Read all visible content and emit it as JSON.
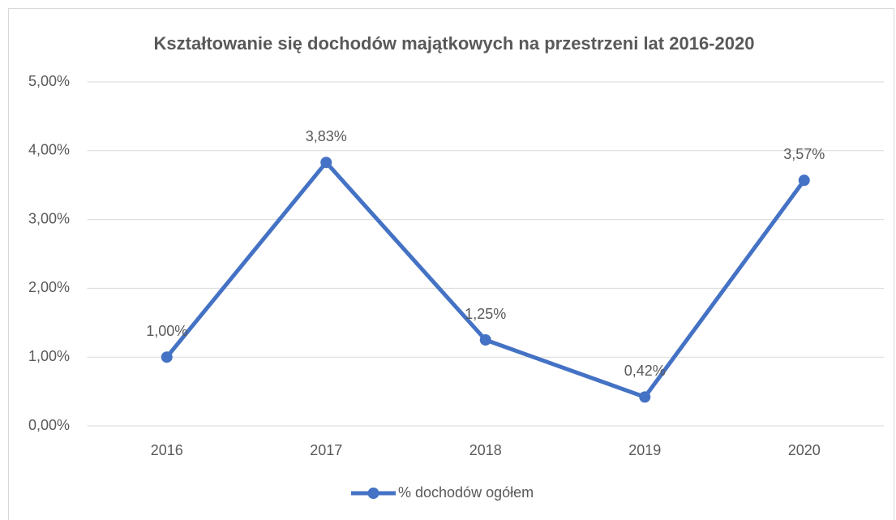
{
  "chart_data": {
    "type": "line",
    "title": "Kształtowanie się dochodów majątkowych na przestrzeni lat 2016-2020",
    "categories": [
      "2016",
      "2017",
      "2018",
      "2019",
      "2020"
    ],
    "series": [
      {
        "name": "% dochodów ogółem",
        "color": "#4472c4",
        "values": [
          1.0,
          3.83,
          1.25,
          0.42,
          3.57
        ],
        "value_labels": [
          "1,00%",
          "3,83%",
          "1,25%",
          "0,42%",
          "3,57%"
        ]
      }
    ],
    "ylim": [
      0,
      5
    ],
    "yticks": [
      {
        "value": 0,
        "label": "0,00%"
      },
      {
        "value": 1,
        "label": "1,00%"
      },
      {
        "value": 2,
        "label": "2,00%"
      },
      {
        "value": 3,
        "label": "3,00%"
      },
      {
        "value": 4,
        "label": "4,00%"
      },
      {
        "value": 5,
        "label": "5,00%"
      }
    ],
    "grid": true,
    "legend": "bottom"
  }
}
